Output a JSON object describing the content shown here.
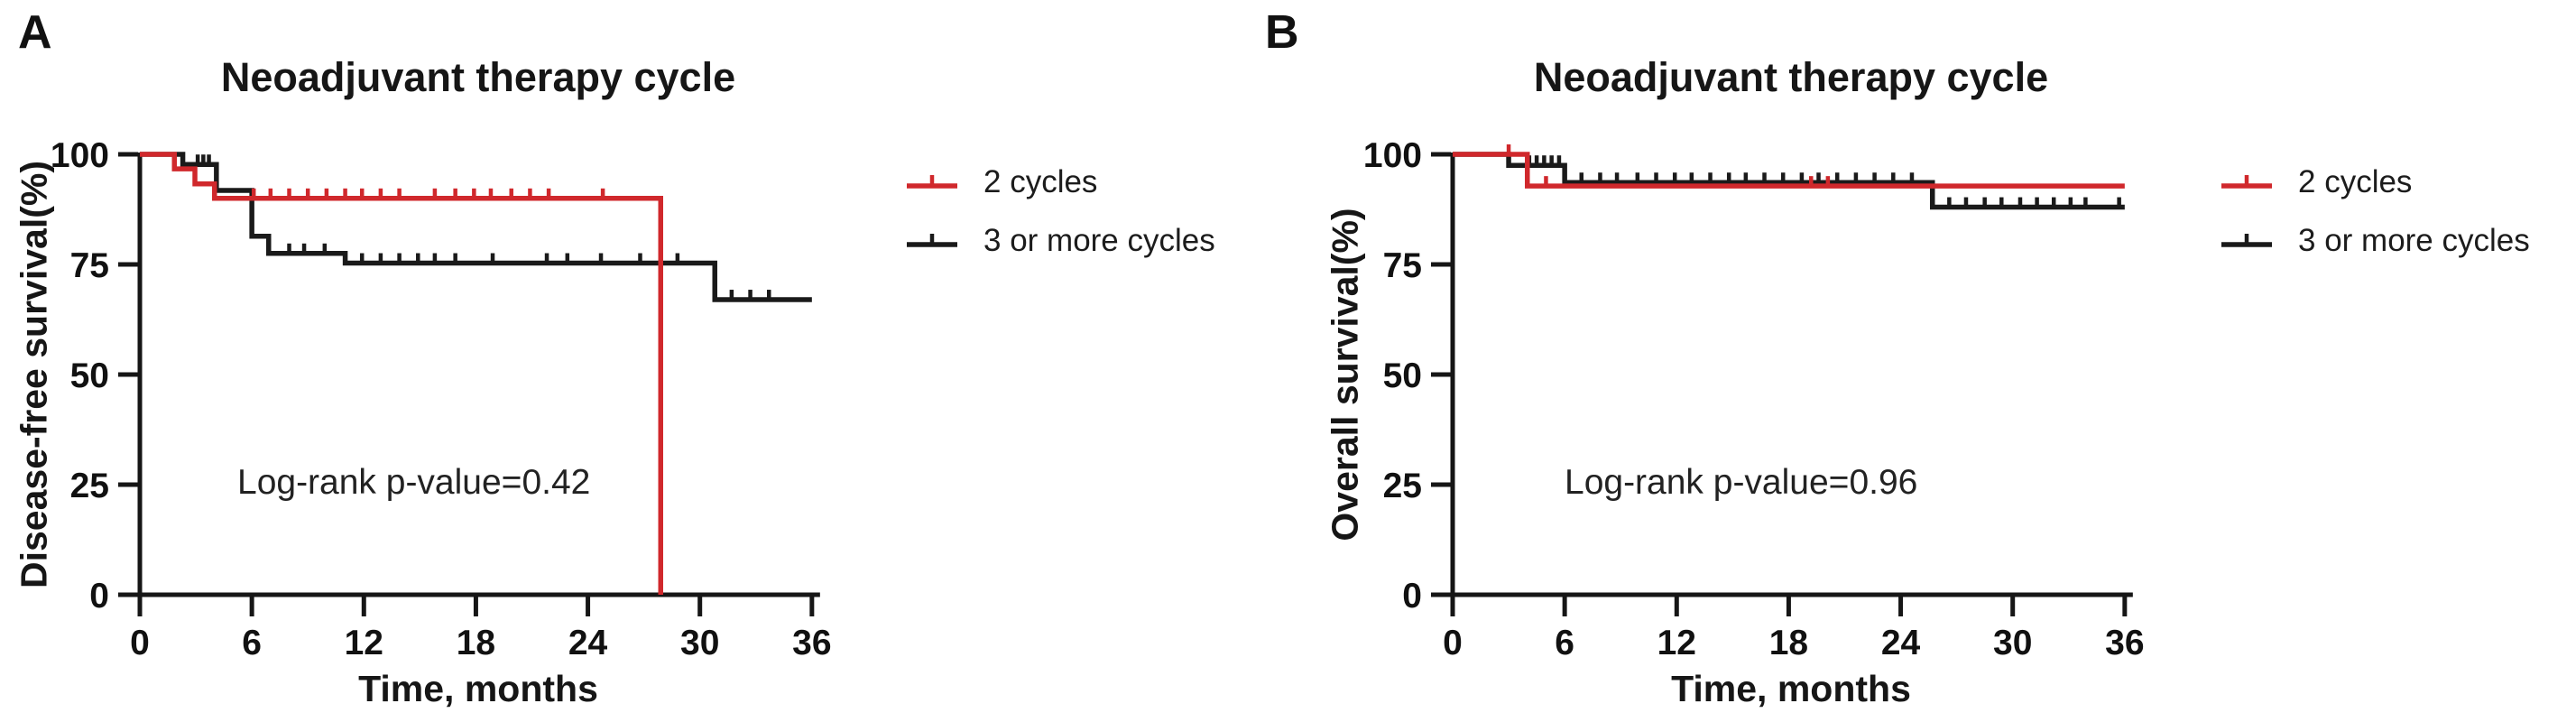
{
  "figure_type": "kaplan-meier-survival-figure",
  "chart_data": [
    {
      "type": "line",
      "panel": "A",
      "letter": "A",
      "title": "Neoadjuvant therapy cycle",
      "x_label": "Time, months",
      "y_label": "Disease-free survival(%)",
      "pvalue_text": "Log-rank p-value=0.42",
      "x_ticks": [
        0,
        6,
        12,
        18,
        24,
        30,
        36
      ],
      "y_ticks": [
        100,
        75,
        50,
        25,
        0
      ],
      "x_range": [
        0,
        36
      ],
      "y_range": [
        0,
        100
      ],
      "grid": false,
      "legend_position": "right-outside",
      "series": [
        {
          "name": "3 or more cycles",
          "color": "#1a1a1a",
          "steps": [
            [
              0,
              100
            ],
            [
              2.3,
              97.7
            ],
            [
              4.1,
              91.8
            ],
            [
              6.0,
              81.4
            ],
            [
              6.9,
              77.5
            ],
            [
              11.0,
              75.3
            ],
            [
              30.8,
              67.0
            ]
          ],
          "end_month": 36,
          "censor_marks": [
            [
              3.1,
              97.7
            ],
            [
              3.4,
              97.7
            ],
            [
              3.7,
              97.7
            ],
            [
              8.0,
              77.5
            ],
            [
              8.8,
              77.5
            ],
            [
              9.9,
              77.5
            ],
            [
              11.9,
              75.3
            ],
            [
              12.9,
              75.3
            ],
            [
              13.9,
              75.3
            ],
            [
              14.9,
              75.3
            ],
            [
              15.8,
              75.3
            ],
            [
              16.9,
              75.3
            ],
            [
              18.9,
              75.3
            ],
            [
              21.8,
              75.3
            ],
            [
              22.9,
              75.3
            ],
            [
              24.7,
              75.3
            ],
            [
              26.8,
              75.3
            ],
            [
              28.8,
              75.3
            ],
            [
              31.7,
              67.0
            ],
            [
              32.7,
              67.0
            ],
            [
              33.7,
              67.0
            ]
          ]
        },
        {
          "name": "2 cycles",
          "color": "#d0282c",
          "steps": [
            [
              0,
              100
            ],
            [
              1.85,
              96.7
            ],
            [
              2.95,
              93.3
            ],
            [
              4.0,
              90.0
            ],
            [
              27.9,
              0
            ]
          ],
          "end_month": 27.9,
          "censor_marks": [
            [
              6.1,
              90
            ],
            [
              7.0,
              90
            ],
            [
              8.0,
              90
            ],
            [
              9.0,
              90
            ],
            [
              10.0,
              90
            ],
            [
              11.0,
              90
            ],
            [
              11.9,
              90
            ],
            [
              12.9,
              90
            ],
            [
              13.9,
              90
            ],
            [
              15.8,
              90
            ],
            [
              16.9,
              90
            ],
            [
              17.9,
              90
            ],
            [
              18.8,
              90
            ],
            [
              19.9,
              90
            ],
            [
              20.9,
              90
            ],
            [
              21.9,
              90
            ],
            [
              24.8,
              90
            ]
          ]
        }
      ],
      "legend": [
        {
          "label": "2 cycles",
          "color": "#d0282c"
        },
        {
          "label": "3 or more cycles",
          "color": "#1a1a1a"
        }
      ]
    },
    {
      "type": "line",
      "panel": "B",
      "letter": "B",
      "title": "Neoadjuvant therapy cycle",
      "x_label": "Time, months",
      "y_label": "Overall survival(%)",
      "pvalue_text": "Log-rank p-value=0.96",
      "x_ticks": [
        0,
        6,
        12,
        18,
        24,
        30,
        36
      ],
      "y_ticks": [
        100,
        75,
        50,
        25,
        0
      ],
      "x_range": [
        0,
        36
      ],
      "y_range": [
        0,
        100
      ],
      "grid": false,
      "legend_position": "right-outside",
      "series": [
        {
          "name": "3 or more cycles",
          "color": "#1a1a1a",
          "steps": [
            [
              0,
              100
            ],
            [
              3.0,
              97.5
            ],
            [
              6.0,
              93.6
            ],
            [
              25.7,
              88.0
            ]
          ],
          "end_month": 36,
          "censor_marks": [
            [
              4.1,
              97.5
            ],
            [
              4.5,
              97.5
            ],
            [
              4.9,
              97.5
            ],
            [
              5.3,
              97.5
            ],
            [
              5.7,
              97.5
            ],
            [
              6.9,
              93.6
            ],
            [
              7.9,
              93.6
            ],
            [
              8.8,
              93.6
            ],
            [
              9.9,
              93.6
            ],
            [
              10.9,
              93.6
            ],
            [
              11.9,
              93.6
            ],
            [
              12.8,
              93.6
            ],
            [
              13.8,
              93.6
            ],
            [
              14.8,
              93.6
            ],
            [
              15.7,
              93.6
            ],
            [
              16.7,
              93.6
            ],
            [
              17.7,
              93.6
            ],
            [
              18.7,
              93.6
            ],
            [
              19.6,
              93.6
            ],
            [
              20.6,
              93.6
            ],
            [
              21.6,
              93.6
            ],
            [
              22.6,
              93.6
            ],
            [
              23.6,
              93.6
            ],
            [
              24.6,
              93.6
            ],
            [
              26.6,
              88.0
            ],
            [
              27.5,
              88.0
            ],
            [
              28.5,
              88.0
            ],
            [
              29.4,
              88.0
            ],
            [
              30.4,
              88.0
            ],
            [
              31.3,
              88.0
            ],
            [
              32.2,
              88.0
            ],
            [
              33.1,
              88.0
            ],
            [
              33.9,
              88.0
            ],
            [
              35.7,
              88.0
            ]
          ]
        },
        {
          "name": "2 cycles",
          "color": "#d0282c",
          "steps": [
            [
              0,
              100
            ],
            [
              4.0,
              92.8
            ]
          ],
          "end_month": 36,
          "censor_marks": [
            [
              3.0,
              100
            ],
            [
              5.0,
              92.8
            ],
            [
              19.2,
              92.8
            ],
            [
              20.1,
              92.8
            ]
          ]
        }
      ],
      "legend": [
        {
          "label": "2 cycles",
          "color": "#d0282c"
        },
        {
          "label": "3 or more cycles",
          "color": "#1a1a1a"
        }
      ]
    }
  ]
}
